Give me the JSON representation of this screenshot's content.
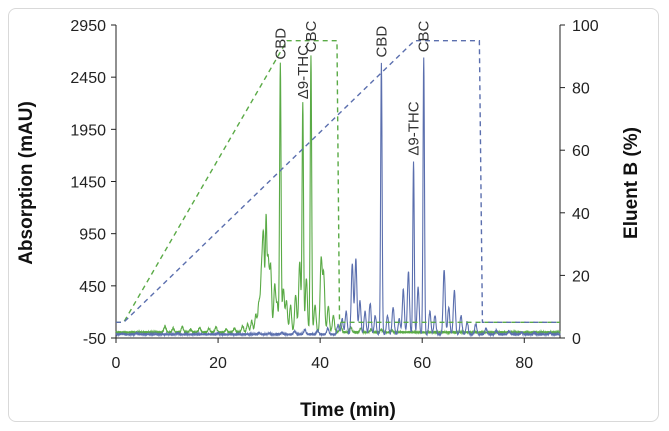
{
  "chart_data": {
    "type": "line",
    "title": "",
    "xlabel": "Time (min)",
    "ylabel": "Absorption (mAU)",
    "y2label": "Eluent B (%)",
    "xlim": [
      0,
      87
    ],
    "ylim": [
      -50,
      2950
    ],
    "y2lim": [
      0,
      100
    ],
    "x_ticks": [
      0,
      20,
      40,
      60,
      80
    ],
    "y_ticks": [
      -50,
      450,
      950,
      1450,
      1950,
      2450,
      2950
    ],
    "y2_ticks": [
      0,
      20,
      40,
      60,
      80,
      100
    ],
    "colors": {
      "green": "#5aaa46",
      "blue": "#5b6fae"
    },
    "series": [
      {
        "axis": "left",
        "style": "solid",
        "color": "#5aaa46",
        "baseline": 5,
        "peaks": [
          [
            9.6,
            60
          ],
          [
            11.2,
            40
          ],
          [
            13.0,
            55
          ],
          [
            14.6,
            30
          ],
          [
            16.4,
            45
          ],
          [
            18.2,
            35
          ],
          [
            19.6,
            50
          ],
          [
            21.6,
            30
          ],
          [
            23.2,
            40
          ],
          [
            24.8,
            60
          ],
          [
            25.8,
            80
          ],
          [
            26.6,
            110
          ],
          [
            27.4,
            170
          ],
          [
            28.0,
            280
          ],
          [
            28.5,
            520
          ],
          [
            28.9,
            900
          ],
          [
            29.4,
            1000
          ],
          [
            29.8,
            700
          ],
          [
            30.3,
            620
          ],
          [
            31.1,
            450
          ],
          [
            31.6,
            260
          ],
          [
            32.2,
            2580
          ],
          [
            32.8,
            420
          ],
          [
            33.4,
            300
          ],
          [
            34.2,
            260
          ],
          [
            35.2,
            360
          ],
          [
            36.0,
            680
          ],
          [
            36.6,
            2200
          ],
          [
            37.3,
            520
          ],
          [
            38.2,
            2650
          ],
          [
            39.0,
            260
          ],
          [
            40.2,
            700
          ],
          [
            40.7,
            550
          ],
          [
            41.6,
            250
          ],
          [
            42.6,
            160
          ],
          [
            44.0,
            80
          ],
          [
            46.0,
            50
          ],
          [
            48.0,
            40
          ],
          [
            50.0,
            30
          ],
          [
            52.0,
            25
          ],
          [
            54.0,
            20
          ]
        ],
        "labels": [
          {
            "x": 32.2,
            "y": 2580,
            "text": "CBD"
          },
          {
            "x": 36.6,
            "y": 2200,
            "text": "Δ9-THC"
          },
          {
            "x": 38.2,
            "y": 2650,
            "text": "CBC"
          }
        ]
      },
      {
        "axis": "left",
        "style": "solid",
        "color": "#5b6fae",
        "baseline": -15,
        "peaks": [
          [
            1.2,
            8
          ],
          [
            4.0,
            12
          ],
          [
            12.0,
            10
          ],
          [
            20.0,
            12
          ],
          [
            28.0,
            15
          ],
          [
            30.0,
            10
          ],
          [
            32.5,
            20
          ],
          [
            35.0,
            30
          ],
          [
            37.0,
            45
          ],
          [
            39.5,
            40
          ],
          [
            41.5,
            60
          ],
          [
            43.5,
            90
          ],
          [
            44.3,
            150
          ],
          [
            45.1,
            220
          ],
          [
            46.3,
            680
          ],
          [
            47.0,
            720
          ],
          [
            47.8,
            320
          ],
          [
            48.8,
            220
          ],
          [
            49.8,
            300
          ],
          [
            50.8,
            180
          ],
          [
            52.0,
            2600
          ],
          [
            53.2,
            180
          ],
          [
            54.3,
            260
          ],
          [
            55.5,
            150
          ],
          [
            56.3,
            430
          ],
          [
            57.3,
            600
          ],
          [
            58.3,
            1660
          ],
          [
            59.2,
            450
          ],
          [
            60.3,
            2650
          ],
          [
            61.5,
            220
          ],
          [
            62.5,
            180
          ],
          [
            64.3,
            620
          ],
          [
            65.2,
            260
          ],
          [
            66.3,
            420
          ],
          [
            67.6,
            180
          ],
          [
            68.8,
            120
          ],
          [
            70.5,
            100
          ],
          [
            72.5,
            60
          ],
          [
            74.5,
            40
          ],
          [
            77.0,
            30
          ],
          [
            79.5,
            20
          ],
          [
            82.0,
            15
          ],
          [
            85.0,
            12
          ]
        ],
        "labels": [
          {
            "x": 52.0,
            "y": 2600,
            "text": "CBD"
          },
          {
            "x": 58.3,
            "y": 1660,
            "text": "Δ9-THC"
          },
          {
            "x": 60.3,
            "y": 2650,
            "text": "CBC"
          }
        ]
      },
      {
        "axis": "right",
        "style": "dashed",
        "color": "#5aaa46",
        "points": [
          [
            0,
            5
          ],
          [
            1.5,
            5
          ],
          [
            33.5,
            95
          ],
          [
            43.3,
            95
          ],
          [
            43.8,
            5
          ],
          [
            87,
            5
          ]
        ]
      },
      {
        "axis": "right",
        "style": "dashed",
        "color": "#5b6fae",
        "points": [
          [
            0,
            5
          ],
          [
            1.5,
            5
          ],
          [
            58.5,
            95
          ],
          [
            71.2,
            95
          ],
          [
            71.8,
            5
          ],
          [
            87,
            5
          ]
        ]
      }
    ]
  }
}
